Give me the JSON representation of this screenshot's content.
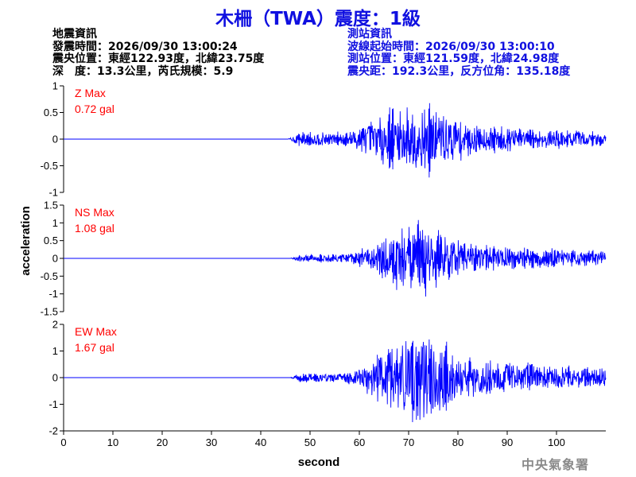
{
  "header": {
    "title": "木柵（TWA）震度：1級",
    "quake_info_heading": "地震資訊",
    "quake_info": [
      "發震時間：2026/09/30 13:00:24",
      "震央位置：東經122.93度，北緯23.75度",
      "深　度：13.3公里，芮氏規模：5.9"
    ],
    "station_info_heading": "測站資訊",
    "station_info": [
      "波線起始時間：2026/09/30 13:00:10",
      "測站位置：東經121.59度，北緯24.98度",
      "震央距：192.3公里，反方位角：135.18度"
    ]
  },
  "footer": {
    "agency": "中央氣象署"
  },
  "colors": {
    "title": "#1010e0",
    "trace": "#0000ff",
    "max_label": "#ff0000",
    "station_text": "#1010e0"
  },
  "chart_data": {
    "type": "line",
    "xlabel": "second",
    "ylabel": "acceleration",
    "x_ticks": [
      0,
      10,
      20,
      30,
      40,
      50,
      60,
      70,
      80,
      90,
      100
    ],
    "xlim": [
      0,
      110
    ],
    "series": [
      {
        "name": "Z",
        "max_label": "Z Max",
        "max_value_label": "0.72 gal",
        "max": 0.72,
        "ylim": [
          -1,
          1
        ],
        "y_ticks": [
          -1,
          -0.5,
          0,
          0.5,
          1
        ],
        "onset": 45.5,
        "env_peak": 72,
        "env_width": 12,
        "pre_level": 0.2,
        "seed": 7
      },
      {
        "name": "NS",
        "max_label": "NS Max",
        "max_value_label": "1.08 gal",
        "max": 1.08,
        "ylim": [
          -1.5,
          1.5
        ],
        "y_ticks": [
          -1.5,
          -1,
          -0.5,
          0,
          0.5,
          1,
          1.5
        ],
        "onset": 46,
        "env_peak": 72,
        "env_width": 10,
        "pre_level": 0.12,
        "seed": 19
      },
      {
        "name": "EW",
        "max_label": "EW Max",
        "max_value_label": "1.67 gal",
        "max": 1.67,
        "ylim": [
          -2,
          2
        ],
        "y_ticks": [
          -2,
          -1,
          0,
          1,
          2
        ],
        "onset": 46,
        "env_peak": 72,
        "env_width": 10,
        "pre_level": 0.1,
        "seed": 31
      }
    ]
  }
}
